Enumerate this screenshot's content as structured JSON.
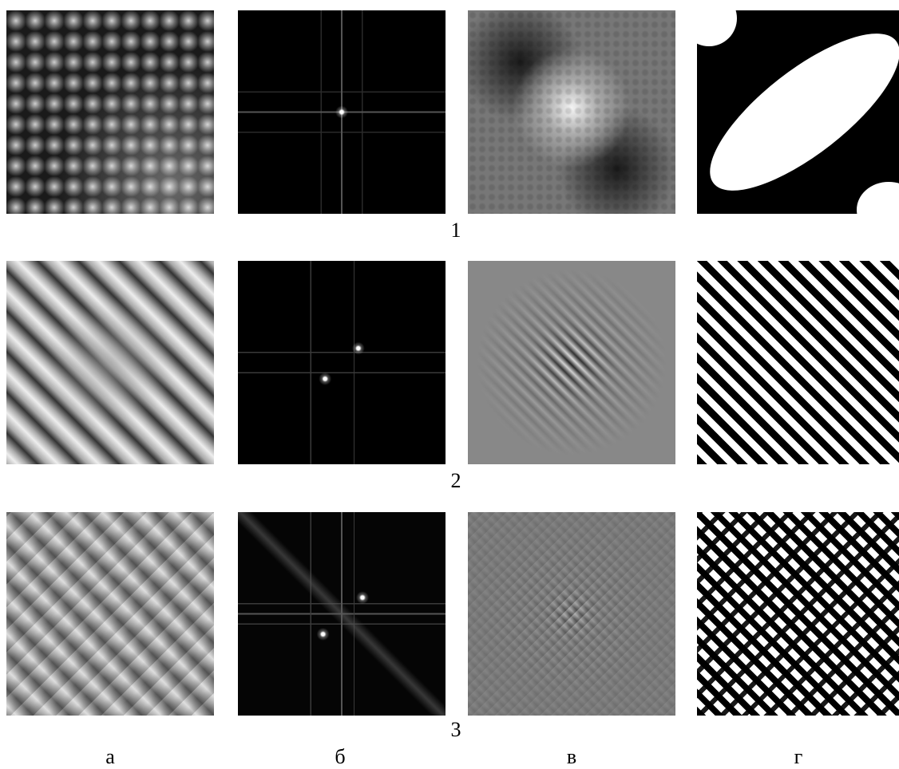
{
  "row_labels": [
    "1",
    "2",
    "3"
  ],
  "column_labels": [
    "а",
    "б",
    "в",
    "г"
  ]
}
